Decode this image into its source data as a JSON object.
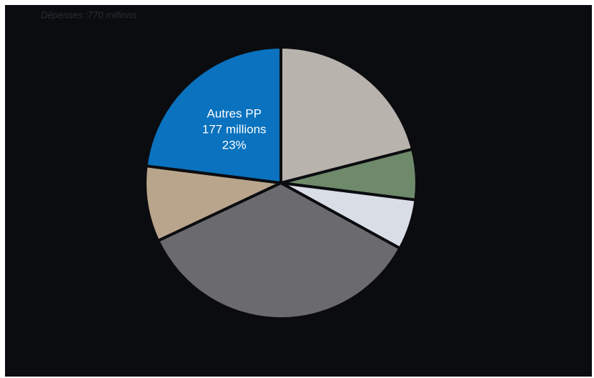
{
  "chart_data": {
    "type": "pie",
    "title": "Dépenses :770 millions",
    "categories": [
      null,
      null,
      null,
      null,
      null,
      "Autres PP"
    ],
    "values": [
      21,
      6,
      6,
      35,
      9,
      23
    ],
    "value_labels": [
      null,
      null,
      null,
      null,
      null,
      "23%"
    ],
    "amounts": [
      null,
      null,
      null,
      null,
      null,
      "177 millions"
    ],
    "colors": [
      "#b9b3ad",
      "#6f8a6a",
      "#d8dde6",
      "#6b6a6e",
      "#b9a58c",
      "#0a72be"
    ]
  }
}
